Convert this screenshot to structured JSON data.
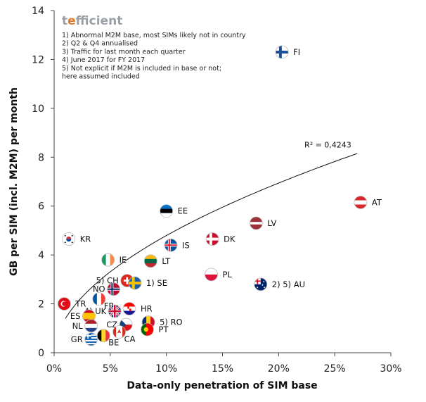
{
  "logo": {
    "text": "tefficient",
    "color": "#9aa0a6",
    "accent": "#e07a2a"
  },
  "notes": [
    "1) Abnormal M2M base, most SIMs likely not in country",
    "2) Q2 & Q4 annualised",
    "3) Traffic for last month each quarter",
    "4) June 2017 for FY 2017",
    "5) Not explicit if M2M is included in base or not;",
    "here  assumed included"
  ],
  "chart_data": {
    "type": "scatter",
    "xlabel": "Data-only penetration of SIM base",
    "ylabel": "GB per SIM (incl. M2M) per month",
    "xlim": [
      0,
      0.3
    ],
    "ylim": [
      0,
      14
    ],
    "xticks": [
      {
        "v": 0,
        "label": "0%"
      },
      {
        "v": 0.05,
        "label": "5%"
      },
      {
        "v": 0.1,
        "label": "10%"
      },
      {
        "v": 0.15,
        "label": "15%"
      },
      {
        "v": 0.2,
        "label": "20%"
      },
      {
        "v": 0.25,
        "label": "25%"
      },
      {
        "v": 0.3,
        "label": "30%"
      }
    ],
    "yticks": [
      {
        "v": 0,
        "label": "0"
      },
      {
        "v": 2,
        "label": "2"
      },
      {
        "v": 4,
        "label": "4"
      },
      {
        "v": 6,
        "label": "6"
      },
      {
        "v": 8,
        "label": "8"
      },
      {
        "v": 10,
        "label": "10"
      },
      {
        "v": 12,
        "label": "12"
      },
      {
        "v": 14,
        "label": "14"
      }
    ],
    "grid": false,
    "trendline": {
      "type": "power",
      "x": [
        0.01,
        0.15,
        0.27
      ],
      "y": [
        1.4,
        4.8,
        8.15
      ],
      "r2_label": "R² = 0,4243"
    },
    "points": [
      {
        "label": "FI",
        "x": 0.203,
        "y": 12.3,
        "flag": "FI",
        "pos": "right"
      },
      {
        "label": "AT",
        "x": 0.273,
        "y": 6.15,
        "flag": "AT",
        "pos": "right"
      },
      {
        "label": "EE",
        "x": 0.1,
        "y": 5.8,
        "flag": "EE",
        "pos": "right"
      },
      {
        "label": "LV",
        "x": 0.18,
        "y": 5.3,
        "flag": "LV",
        "pos": "right"
      },
      {
        "label": "DK",
        "x": 0.141,
        "y": 4.65,
        "flag": "DK",
        "pos": "right"
      },
      {
        "label": "KR",
        "x": 0.013,
        "y": 4.65,
        "flag": "KR",
        "pos": "right"
      },
      {
        "label": "IS",
        "x": 0.104,
        "y": 4.4,
        "flag": "IS",
        "pos": "right"
      },
      {
        "label": "IE",
        "x": 0.048,
        "y": 3.8,
        "flag": "IE",
        "pos": "right"
      },
      {
        "label": "LT",
        "x": 0.086,
        "y": 3.75,
        "flag": "LT",
        "pos": "right"
      },
      {
        "label": "PL",
        "x": 0.14,
        "y": 3.2,
        "flag": "PL",
        "pos": "right"
      },
      {
        "label": "5) CH",
        "x": 0.065,
        "y": 2.95,
        "flag": "CH",
        "pos": "left"
      },
      {
        "label": "1) SE",
        "x": 0.072,
        "y": 2.85,
        "flag": "SE",
        "pos": "right"
      },
      {
        "label": "2) 5) AU",
        "x": 0.184,
        "y": 2.8,
        "flag": "AU",
        "pos": "right"
      },
      {
        "label": "NO",
        "x": 0.053,
        "y": 2.6,
        "flag": "NO",
        "pos": "left"
      },
      {
        "label": "FR",
        "x": 0.04,
        "y": 2.2,
        "flag": "FR",
        "pos": "below-right"
      },
      {
        "label": "TR",
        "x": 0.009,
        "y": 2.0,
        "flag": "TR",
        "pos": "right"
      },
      {
        "label": "HR",
        "x": 0.067,
        "y": 1.8,
        "flag": "HR",
        "pos": "right"
      },
      {
        "label": "4) UK",
        "x": 0.054,
        "y": 1.7,
        "flag": "UK",
        "pos": "left"
      },
      {
        "label": "ES",
        "x": 0.031,
        "y": 1.5,
        "flag": "ES",
        "pos": "left"
      },
      {
        "label": "5) RO",
        "x": 0.084,
        "y": 1.25,
        "flag": "RO",
        "pos": "right"
      },
      {
        "label": "CZ",
        "x": 0.064,
        "y": 1.15,
        "flag": "CZ",
        "pos": "left"
      },
      {
        "label": "NL",
        "x": 0.033,
        "y": 1.1,
        "flag": "NL",
        "pos": "left"
      },
      {
        "label": "PT",
        "x": 0.083,
        "y": 0.95,
        "flag": "PT",
        "pos": "right"
      },
      {
        "label": "CA",
        "x": 0.058,
        "y": 0.85,
        "flag": "CA",
        "pos": "below-right"
      },
      {
        "label": "BE",
        "x": 0.044,
        "y": 0.7,
        "flag": "BE",
        "pos": "below-right"
      },
      {
        "label": "GR",
        "x": 0.033,
        "y": 0.55,
        "flag": "GR",
        "pos": "left"
      }
    ]
  }
}
